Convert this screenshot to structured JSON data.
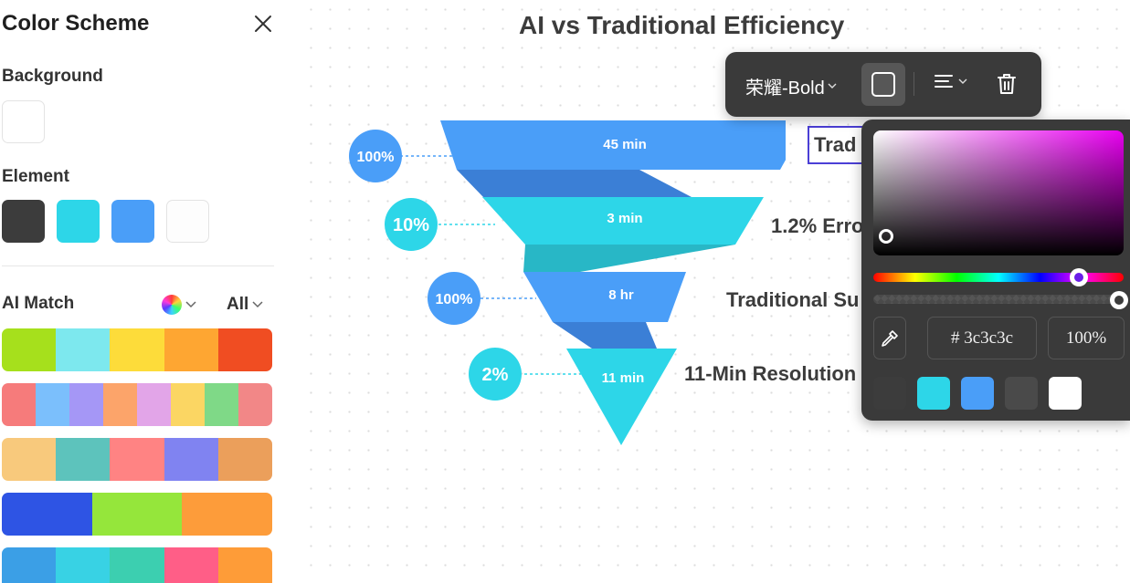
{
  "sidebar": {
    "title": "Color Scheme",
    "background_label": "Background",
    "element_label": "Element",
    "ai_match_label": "AI Match",
    "filter_label": "All",
    "background_swatch": "#ffffff",
    "element_swatches": [
      "#3c3c3c",
      "#2dd6e8",
      "#4a9ef8",
      "#fdfdfd"
    ],
    "palettes": [
      [
        "#a6e01c",
        "#7de8ee",
        "#fddc3a",
        "#fea632",
        "#f04d22"
      ],
      [
        "#f67b7b",
        "#7bbffc",
        "#a597f6",
        "#fca46a",
        "#e2a5e8",
        "#fbd663",
        "#7fd987",
        "#f28787"
      ],
      [
        "#f8c97c",
        "#5dc3bc",
        "#ff8383",
        "#8083f1",
        "#eb9f5b"
      ],
      [
        "#2e54e4",
        "#95e63b",
        "#fd9c3a"
      ],
      [
        "#3b9fe6",
        "#38d2e4",
        "#3ccfb0",
        "#ff5e87",
        "#fe9c38"
      ]
    ]
  },
  "chart": {
    "title": "AI vs Traditional Efficiency",
    "rows": [
      {
        "circle": "100%",
        "segment": "45 min",
        "label": "Trad"
      },
      {
        "circle": "10%",
        "segment": "3 min",
        "label": "1.2% Erro"
      },
      {
        "circle": "100%",
        "segment": "8 hr",
        "label": "Traditional Su"
      },
      {
        "circle": "2%",
        "segment": "11 min",
        "label": "11-Min Resolution"
      }
    ]
  },
  "toolbar": {
    "font_label": "荣耀-Bold"
  },
  "picker": {
    "hex_value": "# 3c3c3c",
    "opacity_value": "100%",
    "presets": [
      "#3c3c3c",
      "#2dd6e8",
      "#4a9ef8",
      "#4a4a4a",
      "#ffffff"
    ]
  }
}
